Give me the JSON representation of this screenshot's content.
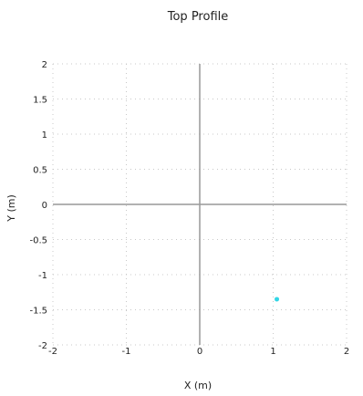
{
  "chart_data": {
    "type": "scatter",
    "title": "Top Profile",
    "xlabel": "X (m)",
    "ylabel": "Y (m)",
    "xlim": [
      -2,
      2
    ],
    "ylim": [
      -2,
      2
    ],
    "x_ticks": [
      {
        "value": -2,
        "label": "-2"
      },
      {
        "value": -1,
        "label": "-1"
      },
      {
        "value": 0,
        "label": "0"
      },
      {
        "value": 1,
        "label": "1"
      },
      {
        "value": 2,
        "label": "2"
      }
    ],
    "y_ticks": [
      {
        "value": 2,
        "label": "2"
      },
      {
        "value": 1.5,
        "label": "1.5"
      },
      {
        "value": 1,
        "label": "1"
      },
      {
        "value": 0.5,
        "label": "0.5"
      },
      {
        "value": 0,
        "label": "0"
      },
      {
        "value": -0.5,
        "label": "-0.5"
      },
      {
        "value": -1,
        "label": "-1"
      },
      {
        "value": -1.5,
        "label": "-1.5"
      },
      {
        "value": -2,
        "label": "-2"
      }
    ],
    "grid": true,
    "series": [
      {
        "points": [
          {
            "x": 1.05,
            "y": -1.35
          }
        ],
        "color": "#33d6e6"
      }
    ],
    "axis_line_color": "#999999",
    "grid_color": "#c8c8c8"
  }
}
